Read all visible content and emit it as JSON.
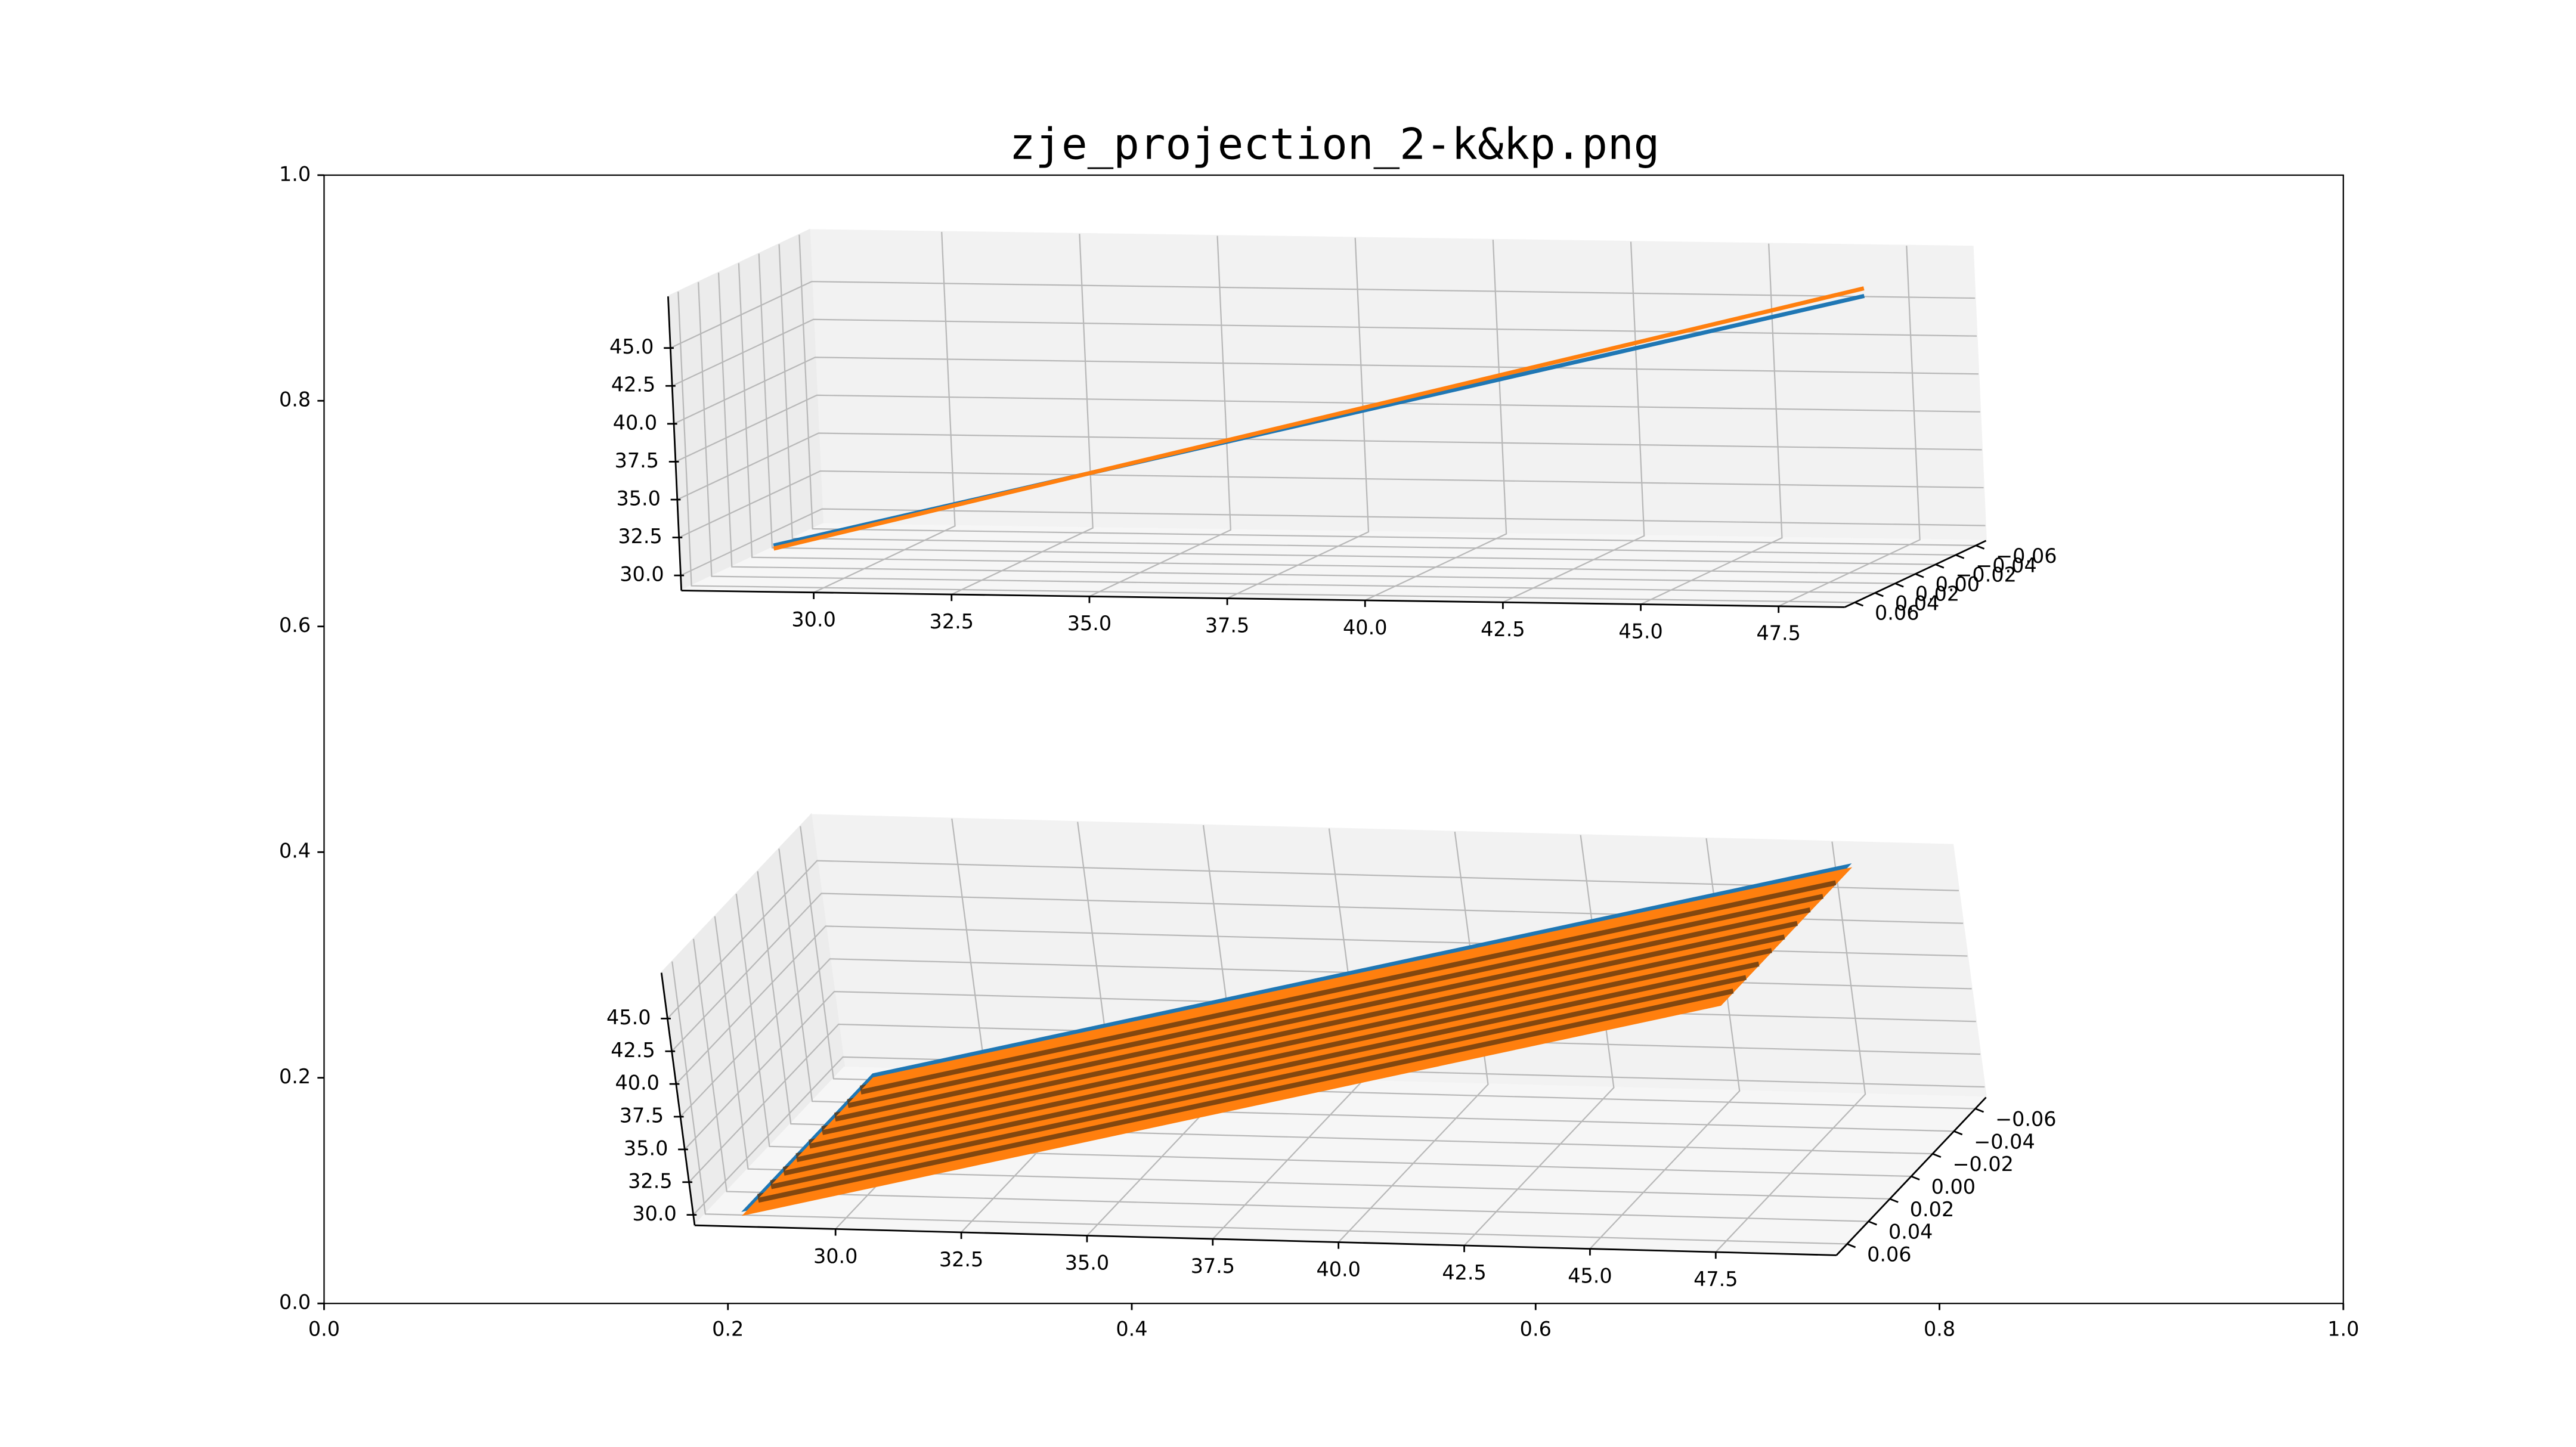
{
  "chart_data": [
    {
      "type": "axes",
      "title": "zje_projection_2-k&kp.png",
      "xlim": [
        0,
        1
      ],
      "ylim": [
        0,
        1
      ],
      "xticks": [
        {
          "value": 0,
          "label": "0.0"
        },
        0.2,
        0.4,
        0.6,
        0.8,
        {
          "value": 1,
          "label": "1.0"
        }
      ],
      "yticks": [
        {
          "value": 0,
          "label": "0.0"
        },
        0.2,
        0.4,
        0.6,
        0.8,
        {
          "value": 1,
          "label": "1.0"
        }
      ]
    },
    {
      "type": "line3d",
      "xlim": [
        27.6,
        48.7
      ],
      "ylim": [
        0.07,
        -0.07
      ],
      "zlim": [
        29,
        48.4
      ],
      "xticks": [
        {
          "value": 30,
          "label": "30.0"
        },
        32.5,
        {
          "value": 35,
          "label": "35.0"
        },
        37.5,
        {
          "value": 40,
          "label": "40.0"
        },
        42.5,
        {
          "value": 45,
          "label": "45.0"
        },
        47.5
      ],
      "yticks": [
        {
          "value": -0.06,
          "label": "−0.06"
        },
        {
          "value": -0.04,
          "label": "−0.04"
        },
        {
          "value": -0.02,
          "label": "−0.02"
        },
        {
          "value": 0,
          "label": "0.00"
        },
        0.02,
        0.04,
        0.06
      ],
      "zticks": [
        {
          "value": 30,
          "label": "30.0"
        },
        32.5,
        {
          "value": 35,
          "label": "35.0"
        },
        37.5,
        {
          "value": 40,
          "label": "40.0"
        },
        42.5,
        {
          "value": 45,
          "label": "45.0"
        }
      ],
      "x": [
        28,
        48
      ],
      "series": [
        {
          "color": "#1f77b4",
          "values": [
            29.8,
            47.3
          ]
        },
        {
          "color": "#ff7f0e",
          "values": [
            29.6,
            47.8
          ]
        }
      ]
    },
    {
      "type": "surface3d",
      "xlim": [
        27.2,
        49.9
      ],
      "ylim": [
        0.07,
        -0.07
      ],
      "zlim": [
        29.2,
        48.5
      ],
      "xticks": [
        {
          "value": 30,
          "label": "30.0"
        },
        32.5,
        {
          "value": 35,
          "label": "35.0"
        },
        37.5,
        {
          "value": 40,
          "label": "40.0"
        },
        42.5,
        {
          "value": 45,
          "label": "45.0"
        },
        47.5
      ],
      "yticks": [
        {
          "value": -0.06,
          "label": "−0.06"
        },
        {
          "value": -0.04,
          "label": "−0.04"
        },
        {
          "value": -0.02,
          "label": "−0.02"
        },
        {
          "value": 0,
          "label": "0.00"
        },
        0.02,
        0.04,
        0.06
      ],
      "zticks": [
        {
          "value": 30,
          "label": "30.0"
        },
        32.5,
        {
          "value": 35,
          "label": "35.0"
        },
        37.5,
        {
          "value": 40,
          "label": "40.0"
        },
        42.5,
        {
          "value": 45,
          "label": "45.0"
        }
      ],
      "surfaces": [
        {
          "color": "#1f77b4",
          "x": [
            28,
            48
          ],
          "y": [
            -0.06,
            0.06
          ],
          "z": [
            [
              29.6,
              47.6
            ],
            [
              29.6,
              47.6
            ]
          ]
        },
        {
          "color": "#ff7f0e",
          "x": [
            28,
            48
          ],
          "y": [
            -0.06,
            0.06
          ],
          "z": [
            [
              29.3,
              47.3
            ],
            [
              29.3,
              47.3
            ]
          ]
        }
      ]
    }
  ]
}
